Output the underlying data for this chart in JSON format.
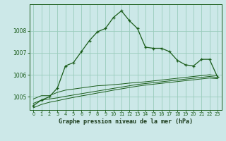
{
  "title": "Graphe pression niveau de la mer (hPa)",
  "bg_color": "#cce8e8",
  "grid_color": "#99ccbb",
  "line_color": "#1a5c1a",
  "xlim": [
    -0.5,
    23.5
  ],
  "ylim": [
    1004.4,
    1009.2
  ],
  "yticks": [
    1005,
    1006,
    1007,
    1008
  ],
  "xticks": [
    0,
    1,
    2,
    3,
    4,
    5,
    6,
    7,
    8,
    9,
    10,
    11,
    12,
    13,
    14,
    15,
    16,
    17,
    18,
    19,
    20,
    21,
    22,
    23
  ],
  "main_series": [
    1004.6,
    1004.85,
    1005.0,
    1005.4,
    1006.4,
    1006.55,
    1007.05,
    1007.55,
    1007.95,
    1008.1,
    1008.6,
    1008.9,
    1008.45,
    1008.1,
    1007.25,
    1007.2,
    1007.2,
    1007.05,
    1006.65,
    1006.45,
    1006.4,
    1006.7,
    1006.7,
    1005.9
  ],
  "line2_series": [
    1004.9,
    1005.05,
    1005.05,
    1005.2,
    1005.3,
    1005.35,
    1005.4,
    1005.45,
    1005.5,
    1005.52,
    1005.55,
    1005.58,
    1005.62,
    1005.65,
    1005.68,
    1005.72,
    1005.76,
    1005.8,
    1005.84,
    1005.88,
    1005.92,
    1005.96,
    1006.0,
    1005.95
  ],
  "line3_series": [
    1004.7,
    1004.85,
    1004.9,
    1004.95,
    1005.02,
    1005.08,
    1005.14,
    1005.2,
    1005.26,
    1005.32,
    1005.38,
    1005.44,
    1005.5,
    1005.56,
    1005.6,
    1005.64,
    1005.68,
    1005.72,
    1005.76,
    1005.8,
    1005.84,
    1005.88,
    1005.92,
    1005.88
  ],
  "line4_series": [
    1004.5,
    1004.65,
    1004.75,
    1004.82,
    1004.9,
    1004.97,
    1005.04,
    1005.1,
    1005.17,
    1005.23,
    1005.3,
    1005.36,
    1005.42,
    1005.48,
    1005.53,
    1005.57,
    1005.61,
    1005.65,
    1005.69,
    1005.73,
    1005.77,
    1005.81,
    1005.85,
    1005.82
  ]
}
